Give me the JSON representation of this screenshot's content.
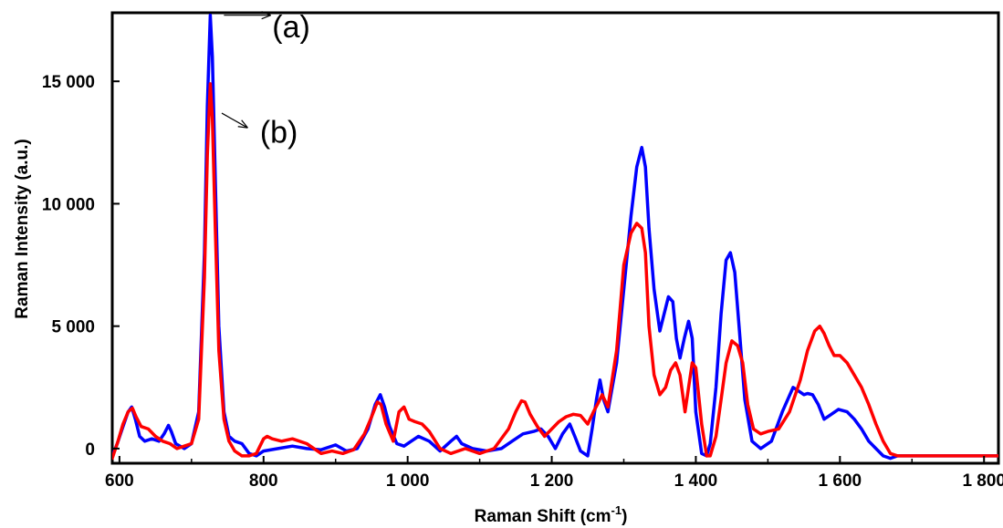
{
  "chart_data": {
    "type": "line",
    "xlabel": "Raman Shift (cm",
    "xlabel_sup": "-1",
    "xlabel_end": ")",
    "ylabel": "Raman Intensity (a.u.)",
    "xlim": [
      590,
      1820
    ],
    "ylim": [
      -600,
      17800
    ],
    "grid": false,
    "x_ticks": [
      {
        "value": 600,
        "label": "600"
      },
      {
        "value": 800,
        "label": "800"
      },
      {
        "value": 1000,
        "label": "1 000"
      },
      {
        "value": 1200,
        "label": "1 200"
      },
      {
        "value": 1400,
        "label": "1 400"
      },
      {
        "value": 1600,
        "label": "1 600"
      },
      {
        "value": 1800,
        "label": "1 800"
      }
    ],
    "y_ticks": [
      {
        "value": 0,
        "label": "0"
      },
      {
        "value": 5000,
        "label": "5 000"
      },
      {
        "value": 10000,
        "label": "10 000"
      },
      {
        "value": 15000,
        "label": "15 000"
      }
    ],
    "annotations": [
      {
        "text": "(a)",
        "series_index": 0,
        "arrow_from": [
          745,
          17700
        ],
        "arrow_to": [
          810,
          17700
        ],
        "text_at": [
          812,
          16800
        ]
      },
      {
        "text": "(b)",
        "series_index": 1,
        "arrow_from": [
          742,
          13700
        ],
        "arrow_to": [
          778,
          13100
        ],
        "text_at": [
          795,
          12500
        ]
      }
    ],
    "series": [
      {
        "color": "#0000ff",
        "x": [
          590,
          597,
          605,
          612,
          617,
          622,
          628,
          635,
          645,
          655,
          662,
          668,
          672,
          678,
          690,
          700,
          710,
          718,
          722,
          726,
          729,
          733,
          738,
          745,
          752,
          760,
          770,
          780,
          790,
          800,
          820,
          840,
          860,
          880,
          900,
          915,
          930,
          945,
          955,
          962,
          968,
          975,
          985,
          995,
          1005,
          1015,
          1030,
          1045,
          1060,
          1068,
          1075,
          1090,
          1110,
          1130,
          1145,
          1160,
          1175,
          1185,
          1195,
          1205,
          1215,
          1225,
          1232,
          1240,
          1250,
          1256,
          1262,
          1267,
          1272,
          1278,
          1290,
          1300,
          1310,
          1318,
          1325,
          1330,
          1335,
          1342,
          1350,
          1356,
          1362,
          1368,
          1373,
          1378,
          1384,
          1390,
          1395,
          1400,
          1408,
          1415,
          1420,
          1428,
          1435,
          1442,
          1448,
          1454,
          1460,
          1468,
          1478,
          1490,
          1505,
          1520,
          1535,
          1545,
          1550,
          1555,
          1562,
          1570,
          1578,
          1588,
          1598,
          1610,
          1620,
          1630,
          1640,
          1650,
          1660,
          1670,
          1680,
          1700,
          1730,
          1760,
          1790,
          1820
        ],
        "y": [
          -300,
          200,
          900,
          1500,
          1700,
          1200,
          500,
          300,
          400,
          300,
          600,
          950,
          700,
          200,
          0,
          200,
          1500,
          8000,
          14000,
          17700,
          16000,
          11000,
          5000,
          1500,
          500,
          300,
          200,
          -200,
          -300,
          -100,
          0,
          100,
          0,
          -50,
          150,
          -100,
          0,
          800,
          1800,
          2200,
          1700,
          900,
          200,
          100,
          300,
          500,
          300,
          -100,
          300,
          500,
          200,
          0,
          -100,
          0,
          300,
          600,
          700,
          800,
          500,
          0,
          600,
          1000,
          500,
          -100,
          -300,
          800,
          2000,
          2800,
          2000,
          1500,
          3500,
          6500,
          9500,
          11500,
          12300,
          11500,
          9000,
          6500,
          4800,
          5500,
          6200,
          6000,
          4500,
          3700,
          4500,
          5200,
          4500,
          1500,
          -200,
          -300,
          200,
          2500,
          5500,
          7700,
          8000,
          7200,
          5000,
          2000,
          300,
          0,
          300,
          1500,
          2500,
          2300,
          2200,
          2250,
          2200,
          1800,
          1200,
          1400,
          1600,
          1500,
          1200,
          800,
          300,
          0,
          -300,
          -400,
          -300,
          -300,
          -300,
          -300,
          -300,
          -300
        ]
      },
      {
        "color": "#ff0000",
        "x": [
          590,
          598,
          605,
          612,
          618,
          623,
          630,
          640,
          650,
          660,
          670,
          680,
          690,
          700,
          710,
          718,
          722,
          726,
          729,
          733,
          738,
          745,
          752,
          760,
          770,
          780,
          790,
          800,
          805,
          812,
          825,
          840,
          860,
          880,
          895,
          910,
          925,
          940,
          950,
          958,
          963,
          970,
          980,
          988,
          995,
          1002,
          1010,
          1020,
          1030,
          1045,
          1060,
          1080,
          1100,
          1120,
          1140,
          1150,
          1158,
          1163,
          1170,
          1180,
          1190,
          1200,
          1210,
          1220,
          1230,
          1240,
          1250,
          1258,
          1265,
          1270,
          1278,
          1290,
          1300,
          1310,
          1318,
          1325,
          1330,
          1335,
          1342,
          1350,
          1358,
          1365,
          1372,
          1378,
          1385,
          1390,
          1395,
          1400,
          1408,
          1415,
          1420,
          1428,
          1435,
          1442,
          1450,
          1458,
          1465,
          1472,
          1480,
          1490,
          1500,
          1515,
          1530,
          1545,
          1555,
          1565,
          1572,
          1578,
          1585,
          1592,
          1600,
          1610,
          1620,
          1630,
          1640,
          1650,
          1660,
          1670,
          1680,
          1700,
          1730,
          1760,
          1790,
          1820
        ],
        "y": [
          -400,
          300,
          1000,
          1500,
          1650,
          1300,
          900,
          800,
          500,
          300,
          200,
          0,
          100,
          200,
          1200,
          7000,
          12000,
          14900,
          13500,
          9000,
          4000,
          1200,
          300,
          -100,
          -300,
          -300,
          -200,
          400,
          500,
          400,
          300,
          400,
          200,
          -200,
          -100,
          -200,
          -50,
          600,
          1300,
          1900,
          1800,
          1000,
          300,
          1500,
          1700,
          1200,
          1100,
          1000,
          700,
          0,
          -200,
          0,
          -200,
          0,
          800,
          1500,
          1950,
          1900,
          1400,
          900,
          500,
          800,
          1100,
          1300,
          1400,
          1350,
          1000,
          1500,
          1900,
          2200,
          1700,
          4000,
          7500,
          8800,
          9200,
          9000,
          8000,
          5000,
          3000,
          2200,
          2500,
          3200,
          3500,
          3000,
          1500,
          2500,
          3500,
          3300,
          1000,
          -300,
          -300,
          500,
          2000,
          3500,
          4400,
          4200,
          3500,
          1800,
          800,
          600,
          700,
          800,
          1500,
          2800,
          4000,
          4800,
          5000,
          4700,
          4200,
          3800,
          3800,
          3500,
          3000,
          2500,
          1800,
          1000,
          300,
          -200,
          -300,
          -300,
          -300,
          -300,
          -300,
          -300
        ]
      }
    ]
  }
}
